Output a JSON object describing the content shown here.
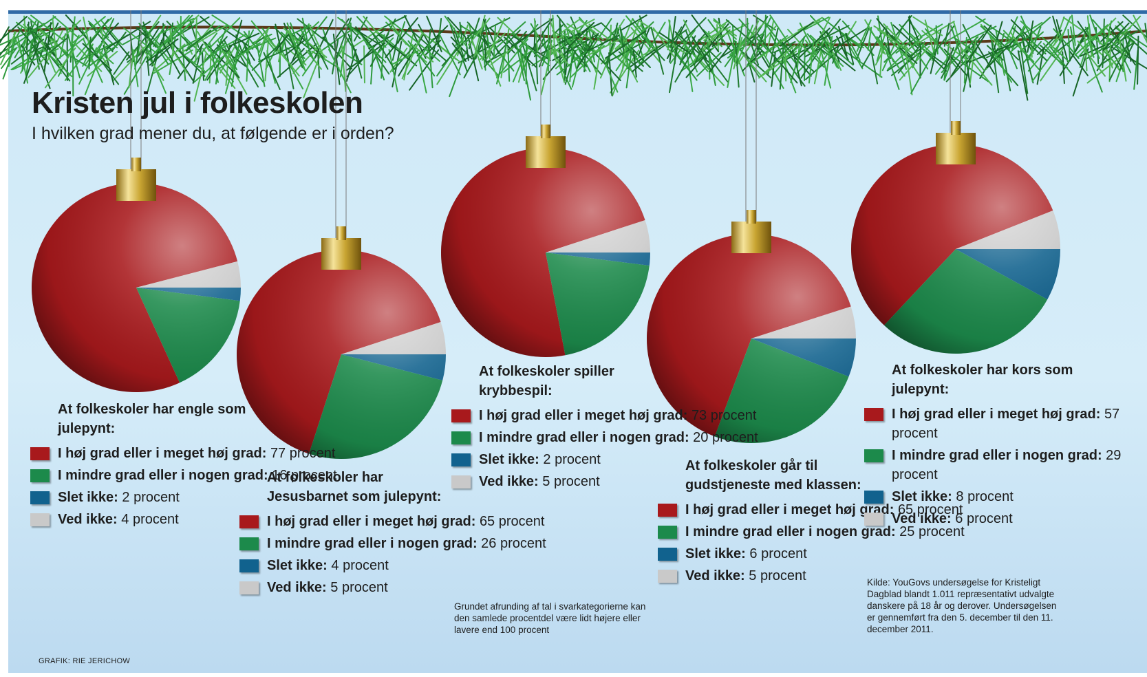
{
  "title": "Kristen jul i folkeskolen",
  "subtitle": "I hvilken grad mener du, at følgende er i orden?",
  "note": "Grundet afrunding af tal i svarkategorierne kan den samlede procentdel være lidt højere eller lavere end 100 procent",
  "source": "Kilde: YouGovs undersøgelse for Kristeligt Dagblad blandt 1.011 repræsentativt udvalgte danskere på 18 år og derover. Undersøgelsen er gennemført fra den 5. december til den 11. december 2011.",
  "credit": "GRAFIK: RIE JERICHOW",
  "colors": {
    "red": "#a8191c",
    "green": "#1c8a4b",
    "blue": "#11628e",
    "gray": "#c9c9c9"
  },
  "legend_labels": [
    "I høj grad eller i meget høj grad:",
    "I mindre grad eller i nogen grad:",
    "Slet ikke:",
    "Ved ikke:"
  ],
  "chart_data": [
    {
      "type": "pie",
      "title": "At folkeskoler har engle som julepynt:",
      "categories": [
        "I høj grad eller i meget høj grad",
        "I mindre grad eller i nogen grad",
        "Slet ikke",
        "Ved ikke"
      ],
      "values": [
        77,
        16,
        2,
        4
      ],
      "value_labels": [
        "77 procent",
        "16 procent",
        "2 procent",
        "4 procent"
      ]
    },
    {
      "type": "pie",
      "title": "At folkeskoler har Jesusbarnet som julepynt:",
      "categories": [
        "I høj grad eller i meget høj grad",
        "I mindre grad eller i nogen grad",
        "Slet ikke",
        "Ved ikke"
      ],
      "values": [
        65,
        26,
        4,
        5
      ],
      "value_labels": [
        "65 procent",
        "26 procent",
        "4 procent",
        "5 procent"
      ]
    },
    {
      "type": "pie",
      "title": "At folkeskoler spiller krybbespil:",
      "categories": [
        "I høj grad eller i meget høj grad",
        "I mindre grad eller i nogen grad",
        "Slet ikke",
        "Ved ikke"
      ],
      "values": [
        73,
        20,
        2,
        5
      ],
      "value_labels": [
        "73 procent",
        "20 procent",
        "2 procent",
        "5 procent"
      ]
    },
    {
      "type": "pie",
      "title": "At folkeskoler går til gudstjeneste med klassen:",
      "categories": [
        "I høj grad eller i meget høj grad",
        "I mindre grad eller i nogen grad",
        "Slet ikke",
        "Ved ikke"
      ],
      "values": [
        65,
        25,
        6,
        5
      ],
      "value_labels": [
        "65 procent",
        "25 procent",
        "6 procent",
        "5 procent"
      ]
    },
    {
      "type": "pie",
      "title": "At folkeskoler har kors som julepynt:",
      "categories": [
        "I høj grad eller i meget høj grad",
        "I mindre grad eller i nogen grad",
        "Slet ikke",
        "Ved ikke"
      ],
      "values": [
        57,
        29,
        8,
        6
      ],
      "value_labels": [
        "57 procent",
        "29 procent",
        "8 procent",
        "6 procent"
      ]
    }
  ]
}
